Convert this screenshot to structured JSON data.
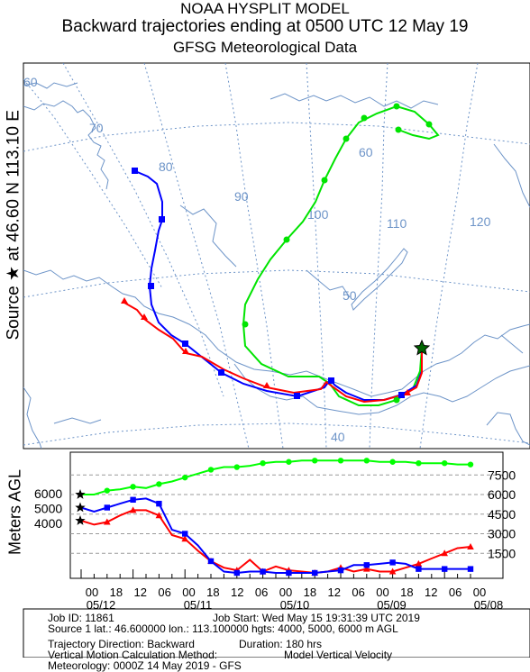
{
  "header": {
    "title": "NOAA HYSPLIT MODEL",
    "subtitle": "Backward trajectories ending at 0500 UTC 12 May 19",
    "meteo": "GFSG Meteorological Data"
  },
  "side": {
    "source_label": "Source ★ at   46.60 N   113.10 E",
    "height_label": "Meters AGL"
  },
  "map": {
    "longitude_labels": [
      "60",
      "70",
      "80",
      "90",
      "100",
      "110",
      "120"
    ],
    "latitude_labels": [
      "60",
      "50",
      "40"
    ],
    "colors": {
      "coast": "#6d94c8",
      "grid": "#6d94c8",
      "label": "#6d94c8"
    }
  },
  "chart_data": {
    "type": "line",
    "title": "Backward trajectories ending at 0500 UTC 12 May 19",
    "ylabel": "Meters AGL",
    "right_ticks": [
      "7500",
      "6000",
      "4500",
      "3000",
      "1500"
    ],
    "left_start_labels": [
      "6000",
      "5000",
      "4000"
    ],
    "hour_ticks": [
      "00",
      "18",
      "12",
      "06",
      "00",
      "18",
      "12",
      "06",
      "00",
      "18",
      "12",
      "06",
      "00",
      "18",
      "12",
      "06",
      "00"
    ],
    "date_labels": [
      "05/12",
      "05/11",
      "05/10",
      "05/09",
      "05/08"
    ],
    "x_range_hours_back": [
      0,
      180
    ],
    "series": [
      {
        "color": "#ff0000",
        "marker": "triangle",
        "start_height": 4000,
        "hours_back": [
          0,
          6,
          12,
          18,
          24,
          30,
          36,
          42,
          48,
          54,
          60,
          66,
          72,
          78,
          84,
          90,
          96,
          102,
          108,
          114,
          120,
          126,
          132,
          138,
          144,
          150,
          156,
          162,
          168,
          174,
          180
        ],
        "heights": [
          4000,
          3700,
          3900,
          4400,
          4800,
          4800,
          4400,
          2900,
          2600,
          1700,
          900,
          400,
          200,
          1000,
          100,
          500,
          200,
          100,
          0,
          100,
          400,
          100,
          300,
          100,
          100,
          400,
          700,
          1100,
          1500,
          1900,
          2000
        ]
      },
      {
        "color": "#0000ff",
        "marker": "square",
        "start_height": 5000,
        "hours_back": [
          0,
          6,
          12,
          18,
          24,
          30,
          36,
          42,
          48,
          54,
          60,
          66,
          72,
          78,
          84,
          90,
          96,
          102,
          108,
          114,
          120,
          126,
          132,
          138,
          144,
          150,
          156,
          162,
          168,
          174,
          180
        ],
        "heights": [
          5000,
          4700,
          5000,
          5300,
          5600,
          5700,
          5300,
          3300,
          3000,
          2100,
          900,
          100,
          0,
          100,
          100,
          0,
          0,
          0,
          0,
          100,
          200,
          600,
          600,
          700,
          800,
          700,
          300,
          300,
          300,
          300,
          300
        ]
      },
      {
        "color": "#00ff00",
        "marker": "circle",
        "start_height": 6000,
        "hours_back": [
          0,
          6,
          12,
          18,
          24,
          30,
          36,
          42,
          48,
          54,
          60,
          66,
          72,
          78,
          84,
          90,
          96,
          102,
          108,
          114,
          120,
          126,
          132,
          138,
          144,
          150,
          156,
          162,
          168,
          174,
          180
        ],
        "heights": [
          6000,
          6000,
          6300,
          6400,
          6600,
          6500,
          6800,
          7000,
          7300,
          7600,
          7900,
          8100,
          8100,
          8200,
          8400,
          8500,
          8500,
          8600,
          8600,
          8600,
          8600,
          8600,
          8600,
          8500,
          8500,
          8500,
          8400,
          8400,
          8400,
          8300,
          8300
        ]
      }
    ]
  },
  "info": {
    "job_id": "Job ID: 11861",
    "job_start": "Job Start: Wed May 15 19:31:39 UTC 2019",
    "source_line": "Source 1 lat.: 46.600000  lon.: 113.100000  hgts: 4000, 5000, 6000 m AGL",
    "direction": "Trajectory Direction: Backward",
    "duration": "Duration: 180 hrs",
    "vertical": "Vertical Motion Calculation Method:",
    "vertical_value": "Model Vertical Velocity",
    "meteorology": "Meteorology: 0000Z 14 May 2019 - GFS"
  }
}
